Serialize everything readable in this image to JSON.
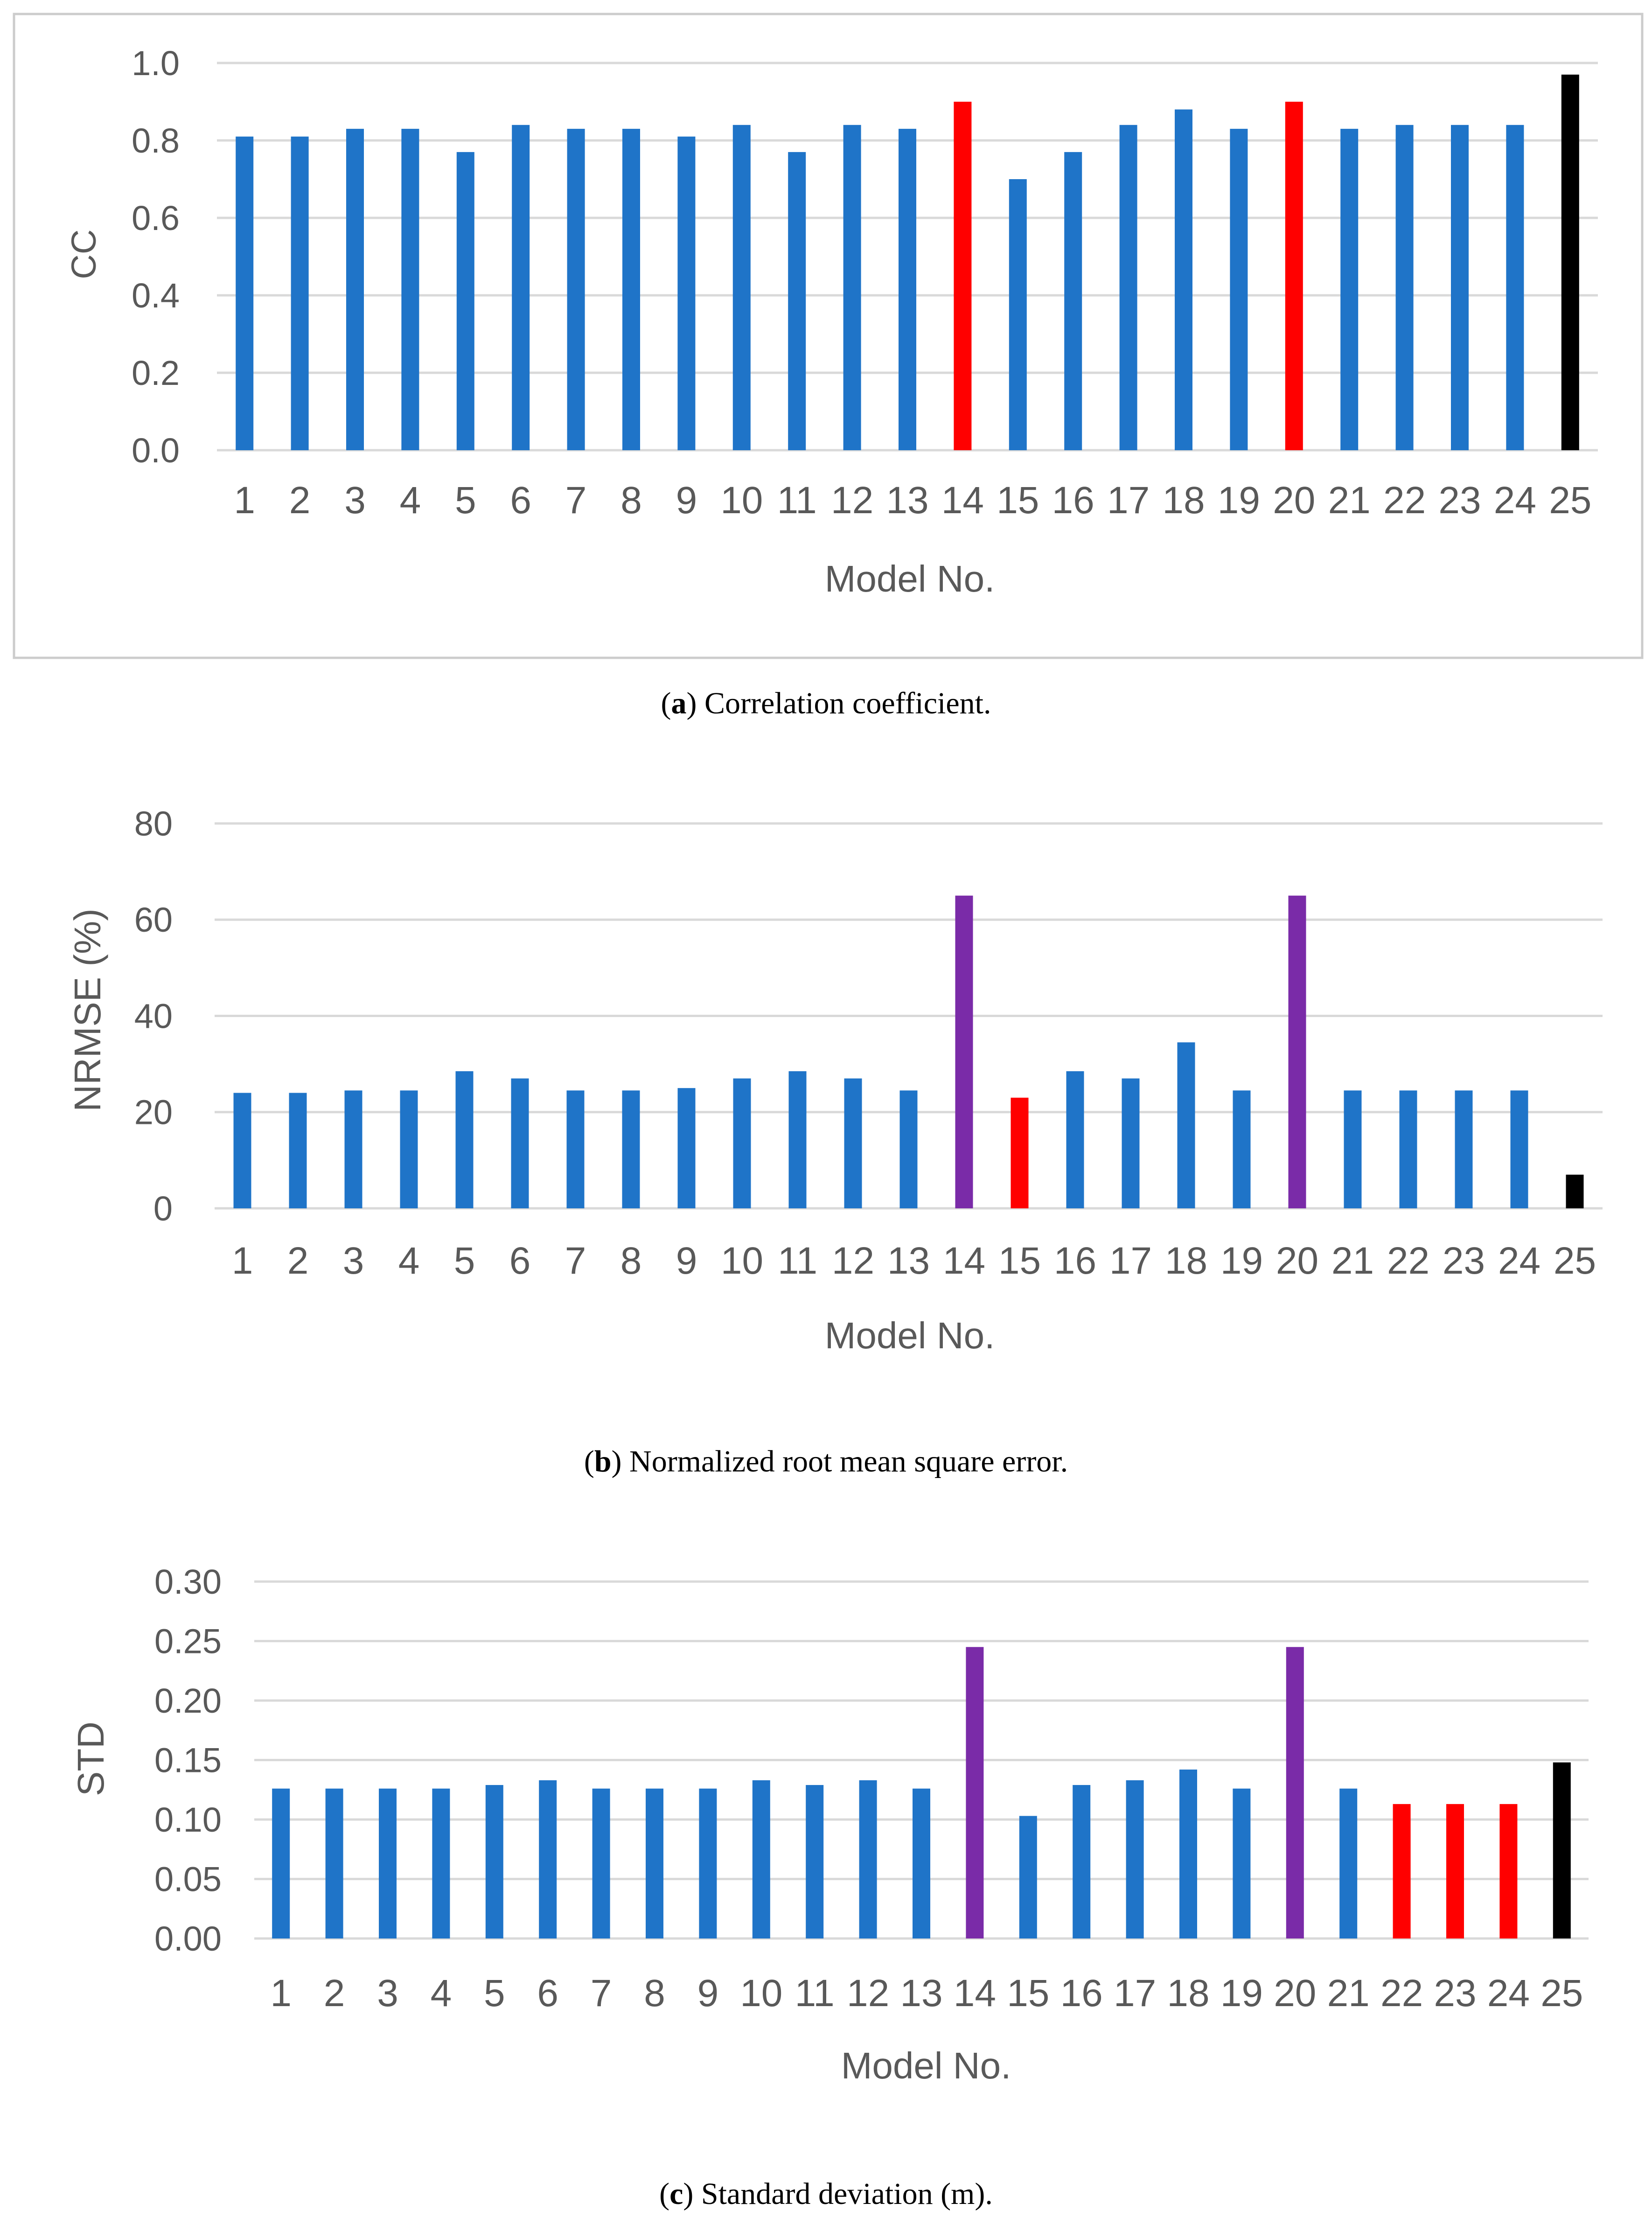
{
  "colors": {
    "blue": "#1f74c8",
    "red": "#ff0000",
    "purple": "#7a2ba8",
    "black": "#000000",
    "grid": "#d9d9d9",
    "axis_text": "#595959",
    "frame": "#cccccc"
  },
  "captions": [
    {
      "letter": "a",
      "open": "(",
      "close": ")",
      "text": " Correlation coefficient."
    },
    {
      "letter": "b",
      "open": "(",
      "close": ")",
      "text": " Normalized root mean square error."
    },
    {
      "letter": "c",
      "open": "(",
      "close": ")",
      "text": " Standard deviation (m)."
    }
  ],
  "chart_data": [
    {
      "type": "bar",
      "ylabel": "CC",
      "xlabel": "Model No.",
      "ylim": [
        0,
        1.0
      ],
      "yticks": [
        0.0,
        0.2,
        0.4,
        0.6,
        0.8,
        1.0
      ],
      "ytick_decimals": 1,
      "categories": [
        "1",
        "2",
        "3",
        "4",
        "5",
        "6",
        "7",
        "8",
        "9",
        "10",
        "11",
        "12",
        "13",
        "14",
        "15",
        "16",
        "17",
        "18",
        "19",
        "20",
        "21",
        "22",
        "23",
        "24",
        "25"
      ],
      "values": [
        0.81,
        0.81,
        0.83,
        0.83,
        0.77,
        0.84,
        0.83,
        0.83,
        0.81,
        0.84,
        0.77,
        0.84,
        0.83,
        0.9,
        0.7,
        0.77,
        0.84,
        0.88,
        0.83,
        0.9,
        0.83,
        0.84,
        0.84,
        0.84,
        0.97
      ],
      "bar_colors": [
        "blue",
        "blue",
        "blue",
        "blue",
        "blue",
        "blue",
        "blue",
        "blue",
        "blue",
        "blue",
        "blue",
        "blue",
        "blue",
        "red",
        "blue",
        "blue",
        "blue",
        "blue",
        "blue",
        "red",
        "blue",
        "blue",
        "blue",
        "blue",
        "black"
      ]
    },
    {
      "type": "bar",
      "ylabel": "NRMSE (%)",
      "xlabel": "Model No.",
      "ylim": [
        0,
        80
      ],
      "yticks": [
        0,
        20,
        40,
        60,
        80
      ],
      "ytick_decimals": 0,
      "categories": [
        "1",
        "2",
        "3",
        "4",
        "5",
        "6",
        "7",
        "8",
        "9",
        "10",
        "11",
        "12",
        "13",
        "14",
        "15",
        "16",
        "17",
        "18",
        "19",
        "20",
        "21",
        "22",
        "23",
        "24",
        "25"
      ],
      "values": [
        24,
        24,
        24.5,
        24.5,
        28.5,
        27,
        24.5,
        24.5,
        25,
        27,
        28.5,
        27,
        24.5,
        65,
        23,
        28.5,
        27,
        34.5,
        24.5,
        65,
        24.5,
        24.5,
        24.5,
        24.5,
        7
      ],
      "bar_colors": [
        "blue",
        "blue",
        "blue",
        "blue",
        "blue",
        "blue",
        "blue",
        "blue",
        "blue",
        "blue",
        "blue",
        "blue",
        "blue",
        "purple",
        "red",
        "blue",
        "blue",
        "blue",
        "blue",
        "purple",
        "blue",
        "blue",
        "blue",
        "blue",
        "black"
      ]
    },
    {
      "type": "bar",
      "ylabel": "STD",
      "xlabel": "Model No.",
      "ylim": [
        0,
        0.3
      ],
      "yticks": [
        0.0,
        0.05,
        0.1,
        0.15,
        0.2,
        0.25,
        0.3
      ],
      "ytick_decimals": 2,
      "categories": [
        "1",
        "2",
        "3",
        "4",
        "5",
        "6",
        "7",
        "8",
        "9",
        "10",
        "11",
        "12",
        "13",
        "14",
        "15",
        "16",
        "17",
        "18",
        "19",
        "20",
        "21",
        "22",
        "23",
        "24",
        "25"
      ],
      "values": [
        0.126,
        0.126,
        0.126,
        0.126,
        0.129,
        0.133,
        0.126,
        0.126,
        0.126,
        0.133,
        0.129,
        0.133,
        0.126,
        0.245,
        0.103,
        0.129,
        0.133,
        0.142,
        0.126,
        0.245,
        0.126,
        0.113,
        0.113,
        0.113,
        0.148
      ],
      "bar_colors": [
        "blue",
        "blue",
        "blue",
        "blue",
        "blue",
        "blue",
        "blue",
        "blue",
        "blue",
        "blue",
        "blue",
        "blue",
        "blue",
        "purple",
        "blue",
        "blue",
        "blue",
        "blue",
        "blue",
        "purple",
        "blue",
        "red",
        "red",
        "red",
        "black"
      ]
    }
  ]
}
